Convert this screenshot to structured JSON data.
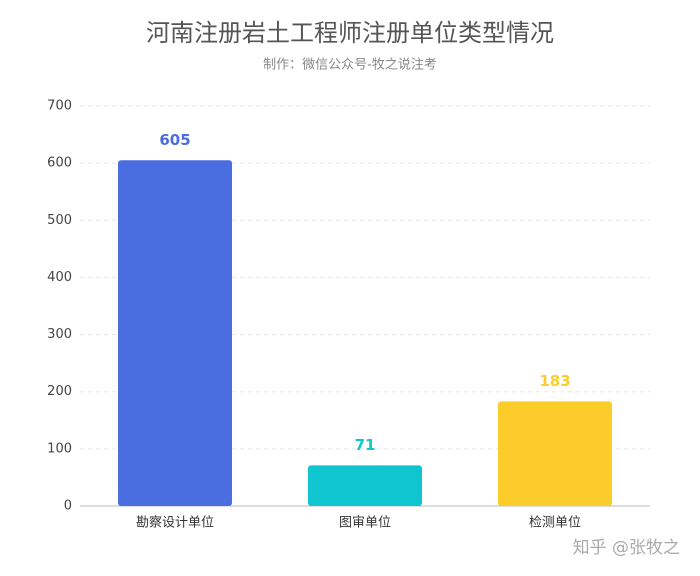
{
  "chart_data": {
    "type": "bar",
    "title": "河南注册岩土工程师注册单位类型情况",
    "subtitle": "制作：微信公众号-牧之说注考",
    "categories": [
      "勘察设计单位",
      "图审单位",
      "检测单位"
    ],
    "values": [
      605,
      71,
      183
    ],
    "colors": [
      "#4a6ee0",
      "#0ec5d0",
      "#fccd2a"
    ],
    "ylim": [
      0,
      700
    ],
    "yticks": [
      0,
      100,
      200,
      300,
      400,
      500,
      600,
      700
    ],
    "grid": true
  },
  "watermark": "知乎 @张牧之"
}
